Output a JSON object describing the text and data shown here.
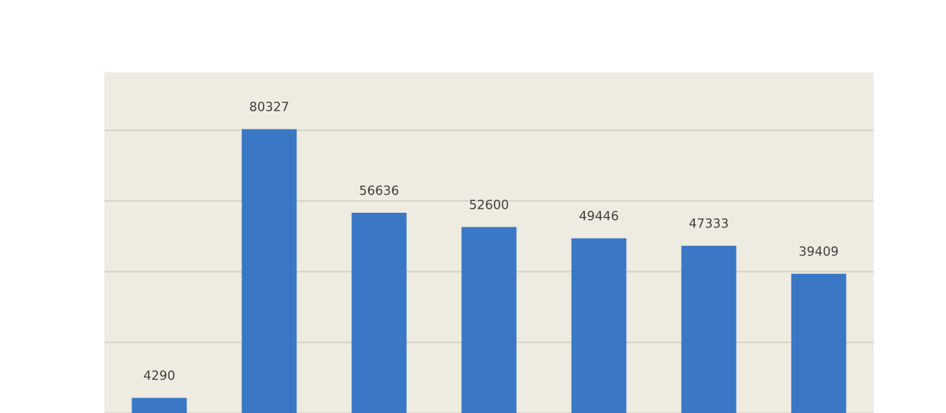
{
  "chart_data": {
    "type": "bar",
    "categories": [
      null,
      null,
      null,
      null,
      null,
      null,
      null
    ],
    "values": [
      4290,
      80327,
      56636,
      52600,
      49446,
      47333,
      39409
    ],
    "color": "#3a78c6",
    "data_labels": true,
    "tick_labels": false,
    "grid": "y"
  }
}
